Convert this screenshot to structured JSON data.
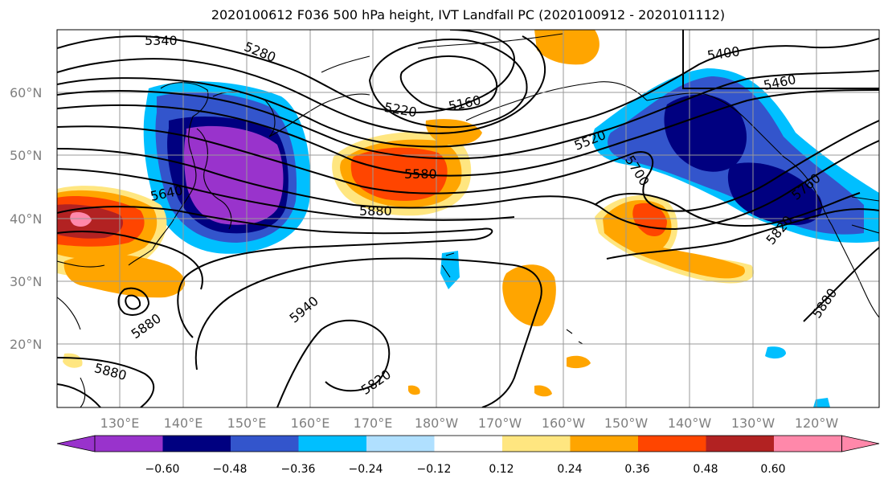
{
  "title": "2020100612 F036 500 hPa height, IVT Landfall PC (2020100912 - 2020101112)",
  "lon_labels": [
    "130°E",
    "140°E",
    "150°E",
    "160°E",
    "170°E",
    "180°W",
    "170°W",
    "160°W",
    "150°W",
    "140°W",
    "130°W",
    "120°W"
  ],
  "lat_labels": [
    "60°N",
    "50°N",
    "40°N",
    "30°N",
    "20°N"
  ],
  "contour_labels": [
    "5340",
    "5280",
    "5220",
    "5160",
    "5400",
    "5460",
    "5520",
    "5580",
    "5640",
    "5700",
    "5760",
    "5820",
    "5880",
    "5940",
    "5820",
    "5880",
    "5880",
    "5880"
  ],
  "colorbar": {
    "ticks": [
      "−0.60",
      "−0.48",
      "−0.36",
      "−0.24",
      "−0.12",
      "0.12",
      "0.24",
      "0.36",
      "0.48",
      "0.60"
    ],
    "colors": [
      "#9933cc",
      "#000080",
      "#3355cc",
      "#00bfff",
      "#b0e0ff",
      "#ffffff",
      "#ffe680",
      "#ffa500",
      "#ff4500",
      "#b22222",
      "#ff88aa"
    ]
  }
}
